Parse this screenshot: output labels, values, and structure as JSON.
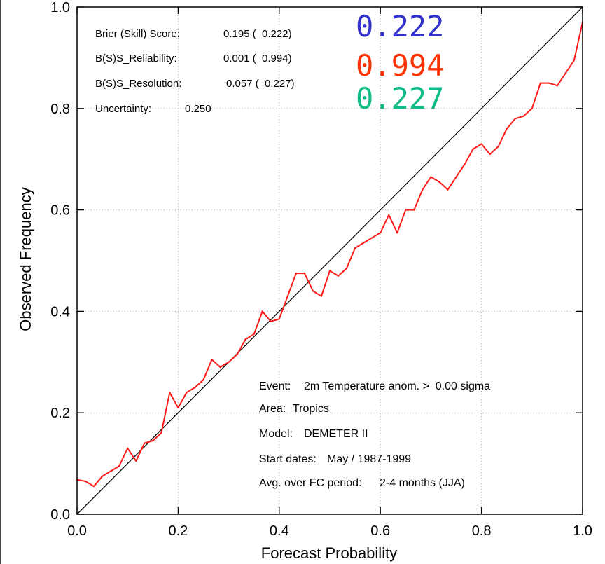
{
  "chart_data": {
    "type": "line",
    "title": "",
    "xlabel": "Forecast Probability",
    "ylabel": "Observed Frequency",
    "xlim": [
      0.0,
      1.0
    ],
    "ylim": [
      0.0,
      1.0
    ],
    "x_ticks": [
      "0.0",
      "0.2",
      "0.4",
      "0.6",
      "0.8",
      "1.0"
    ],
    "y_ticks": [
      "0.0",
      "0.2",
      "0.4",
      "0.6",
      "0.8",
      "1.0"
    ],
    "diagonal": [
      [
        0.0,
        0.0
      ],
      [
        1.0,
        1.0
      ]
    ],
    "series": [
      {
        "color": "#ff1a1a",
        "x": [
          0.0,
          0.0167,
          0.0333,
          0.05,
          0.0667,
          0.0833,
          0.1,
          0.1167,
          0.1333,
          0.15,
          0.1667,
          0.1833,
          0.2,
          0.2167,
          0.2333,
          0.25,
          0.2667,
          0.2833,
          0.3,
          0.3167,
          0.3333,
          0.35,
          0.3667,
          0.3833,
          0.4,
          0.4167,
          0.4333,
          0.45,
          0.4667,
          0.4833,
          0.5,
          0.5167,
          0.5333,
          0.55,
          0.5667,
          0.5833,
          0.6,
          0.6167,
          0.6333,
          0.65,
          0.6667,
          0.6833,
          0.7,
          0.7167,
          0.7333,
          0.75,
          0.7667,
          0.7833,
          0.8,
          0.8167,
          0.8333,
          0.85,
          0.8667,
          0.8833,
          0.9,
          0.9167,
          0.9333,
          0.95,
          0.9667,
          0.9833,
          1.0
        ],
        "y": [
          0.068,
          0.065,
          0.055,
          0.075,
          0.085,
          0.095,
          0.13,
          0.105,
          0.14,
          0.145,
          0.16,
          0.24,
          0.21,
          0.24,
          0.25,
          0.265,
          0.305,
          0.29,
          0.3,
          0.315,
          0.345,
          0.355,
          0.4,
          0.38,
          0.385,
          0.43,
          0.475,
          0.475,
          0.44,
          0.43,
          0.48,
          0.47,
          0.485,
          0.525,
          0.535,
          0.545,
          0.555,
          0.59,
          0.555,
          0.6,
          0.6,
          0.64,
          0.665,
          0.655,
          0.64,
          0.665,
          0.69,
          0.72,
          0.73,
          0.71,
          0.725,
          0.76,
          0.78,
          0.785,
          0.8,
          0.85,
          0.85,
          0.845,
          0.87,
          0.895,
          0.97
        ]
      }
    ],
    "stats": [
      {
        "label": "Brier (Skill) Score:",
        "value": "0.195 (  0.222)"
      },
      {
        "label": "B(S)S_Reliability:",
        "value": "0.001 (  0.994)"
      },
      {
        "label": "B(S)S_Resolution:",
        "value": "0.057 (  0.227)"
      },
      {
        "label": "Uncertainty:",
        "value": "0.250"
      }
    ],
    "annotations": [
      {
        "label": "Event:",
        "value": "2m Temperature anom. >  0.00 sigma"
      },
      {
        "label": "Area:",
        "value": "Tropics"
      },
      {
        "label": "Model:",
        "value": "DEMETER II"
      },
      {
        "label": "Start dates:",
        "value": "May / 1987-1999"
      },
      {
        "label": "Avg. over FC period:",
        "value": "2-4 months (JJA)"
      }
    ],
    "highlights": [
      {
        "text": "0.222",
        "color": "#3333cc"
      },
      {
        "text": "0.994",
        "color": "#ff3300"
      },
      {
        "text": "0.227",
        "color": "#11bb88"
      }
    ]
  }
}
